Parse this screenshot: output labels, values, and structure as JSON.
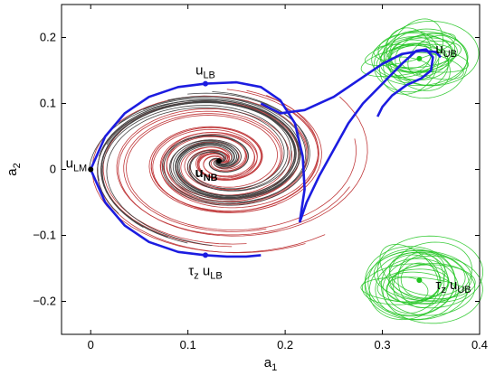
{
  "chart_data": {
    "type": "line",
    "title": "",
    "xlabel": {
      "base": "a",
      "sub": "1"
    },
    "ylabel": {
      "base": "a",
      "sub": "2"
    },
    "xlim": [
      -0.03,
      0.4
    ],
    "ylim": [
      -0.25,
      0.25
    ],
    "grid": false,
    "x_ticks": [
      0,
      0.1,
      0.2,
      0.3,
      0.4
    ],
    "x_tick_labels": [
      "0",
      "0.1",
      "0.2",
      "0.3",
      "0.4"
    ],
    "y_ticks": [
      -0.2,
      -0.1,
      0,
      0.1,
      0.2
    ],
    "y_tick_labels": [
      "−0.2",
      "−0.1",
      "0",
      "0.1",
      "0.2"
    ],
    "colors": {
      "blue": "#1c1ce0",
      "black_traj": "#444444",
      "red_traj": "#c0393b",
      "green_traj": "#1fc41f",
      "marker": "#000000"
    },
    "points": [
      {
        "id": "u_LM",
        "x": 0.0,
        "y": 0.0,
        "label_prefix": "",
        "label_base": "u",
        "label_sub": "LM",
        "anchor": "end",
        "dx": -4,
        "dy": -2,
        "dot_color": "#000000"
      },
      {
        "id": "u_LB",
        "x": 0.118,
        "y": 0.13,
        "label_prefix": "",
        "label_base": "u",
        "label_sub": "LB",
        "anchor": "middle",
        "dx": 0,
        "dy": -10,
        "dot_color": "#1c1ce0"
      },
      {
        "id": "tau_u_LB",
        "x": 0.118,
        "y": -0.13,
        "label_prefix": "τ",
        "prefix_sub": "z",
        "label_base": " u",
        "label_sub": "LB",
        "anchor": "middle",
        "dx": 0,
        "dy": 22,
        "dot_color": "#1c1ce0"
      },
      {
        "id": "u_NB",
        "x": 0.132,
        "y": 0.013,
        "label_prefix": "",
        "label_base": "u",
        "label_sub": "NB",
        "anchor": "middle",
        "dx": -14,
        "dy": 18,
        "dot_color": "#000000",
        "bold": true
      },
      {
        "id": "u_UB",
        "x": 0.338,
        "y": 0.168,
        "label_prefix": "",
        "label_base": "u",
        "label_sub": "UB",
        "anchor": "start",
        "dx": 18,
        "dy": -6,
        "dot_color": "#1fc41f"
      },
      {
        "id": "tau_u_UB",
        "x": 0.338,
        "y": -0.168,
        "label_prefix": "τ",
        "prefix_sub": "z",
        "label_base": " u",
        "label_sub": "UB",
        "anchor": "start",
        "dx": 18,
        "dy": 10,
        "dot_color": "#1fc41f"
      }
    ],
    "series": [
      {
        "style": "blue_boundary_upper",
        "x": [
          0.0,
          0.015,
          0.035,
          0.06,
          0.09,
          0.118,
          0.15,
          0.175,
          0.195,
          0.21,
          0.218,
          0.22,
          0.215
        ],
        "y": [
          0.0,
          0.05,
          0.085,
          0.11,
          0.125,
          0.13,
          0.132,
          0.125,
          0.105,
          0.07,
          0.02,
          -0.03,
          -0.08
        ]
      },
      {
        "style": "blue_boundary_lower",
        "x": [
          0.0,
          0.015,
          0.035,
          0.06,
          0.09,
          0.118,
          0.14,
          0.16,
          0.175
        ],
        "y": [
          0.0,
          -0.05,
          -0.085,
          -0.11,
          -0.125,
          -0.13,
          -0.132,
          -0.132,
          -0.13
        ]
      },
      {
        "style": "blue_unstable_manifold",
        "x": [
          0.215,
          0.222,
          0.235,
          0.25,
          0.265,
          0.28,
          0.3,
          0.32,
          0.335,
          0.345,
          0.352,
          0.35,
          0.34,
          0.325,
          0.31,
          0.3,
          0.295
        ],
        "y": [
          -0.08,
          -0.05,
          -0.01,
          0.03,
          0.07,
          0.1,
          0.13,
          0.16,
          0.18,
          0.182,
          0.17,
          0.15,
          0.138,
          0.128,
          0.112,
          0.095,
          0.08
        ]
      },
      {
        "style": "blue_unstable_manifold",
        "x": [
          0.175,
          0.195,
          0.22,
          0.25,
          0.28,
          0.3,
          0.32,
          0.34,
          0.355,
          0.36
        ],
        "y": [
          0.1,
          0.085,
          0.09,
          0.11,
          0.14,
          0.16,
          0.175,
          0.18,
          0.178,
          0.17
        ]
      }
    ],
    "black_trajectories": {
      "center": [
        0.132,
        0.013
      ],
      "starts": [
        [
          0.0,
          0.0
        ],
        [
          0.03,
          0.075
        ],
        [
          0.055,
          0.098
        ],
        [
          0.08,
          0.114
        ],
        [
          0.1,
          0.124
        ],
        [
          0.03,
          -0.075
        ],
        [
          0.055,
          -0.098
        ],
        [
          0.08,
          -0.114
        ],
        [
          0.1,
          -0.124
        ],
        [
          0.018,
          0.04
        ],
        [
          0.018,
          -0.04
        ],
        [
          0.01,
          0.02
        ],
        [
          0.01,
          -0.02
        ],
        [
          0.125,
          0.128
        ],
        [
          0.125,
          -0.128
        ]
      ]
    },
    "red_trajectories": {
      "center": [
        0.132,
        0.013
      ],
      "starts": [
        [
          0.14,
          0.132
        ],
        [
          0.16,
          0.13
        ],
        [
          0.18,
          0.122
        ],
        [
          0.2,
          0.1
        ],
        [
          0.21,
          0.07
        ],
        [
          0.205,
          0.03
        ],
        [
          0.2,
          -0.02
        ],
        [
          0.19,
          -0.06
        ],
        [
          0.18,
          -0.1
        ],
        [
          0.16,
          -0.125
        ],
        [
          0.145,
          -0.13
        ],
        [
          0.255,
          0.12
        ],
        [
          0.27,
          0.05
        ],
        [
          0.265,
          -0.03
        ],
        [
          0.24,
          -0.11
        ],
        [
          0.22,
          -0.125
        ]
      ]
    },
    "green_attractors": [
      {
        "center": [
          0.338,
          0.168
        ],
        "spread_x": 0.05,
        "spread_y": 0.055
      },
      {
        "center": [
          0.338,
          -0.168
        ],
        "spread_x": 0.05,
        "spread_y": 0.055
      }
    ]
  }
}
